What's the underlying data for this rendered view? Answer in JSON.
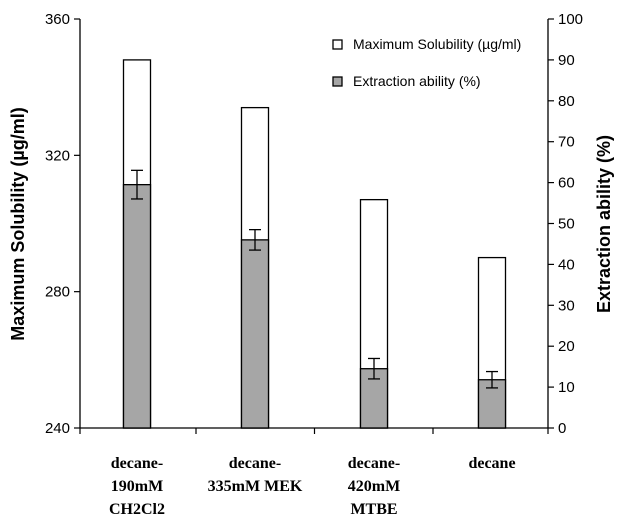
{
  "chart_data": {
    "type": "bar",
    "categories": [
      [
        "decane-",
        "190mM",
        "CH2Cl2"
      ],
      [
        "decane-",
        "335mM MEK"
      ],
      [
        "decane-",
        "420mM",
        "MTBE"
      ],
      [
        "decane"
      ]
    ],
    "series": [
      {
        "name": "Maximum Solubility (µg/ml)",
        "axis": "left",
        "values": [
          348,
          334,
          307,
          290
        ],
        "color": "#ffffff"
      },
      {
        "name": "Extraction ability (%)",
        "axis": "right",
        "values": [
          59.5,
          46,
          14.5,
          11.8
        ],
        "errors": [
          3.5,
          2.5,
          2.5,
          2.0
        ],
        "color": "#a6a6a6"
      }
    ],
    "y_left": {
      "label": "Maximum Solubility (µg/ml)",
      "range": [
        240,
        360
      ],
      "ticks": [
        240,
        280,
        320,
        360
      ]
    },
    "y_right": {
      "label": "Extraction ability (%)",
      "range": [
        0,
        100
      ],
      "ticks": [
        0,
        10,
        20,
        30,
        40,
        50,
        60,
        70,
        80,
        90,
        100
      ]
    },
    "legend": "top-right",
    "grid": false
  }
}
